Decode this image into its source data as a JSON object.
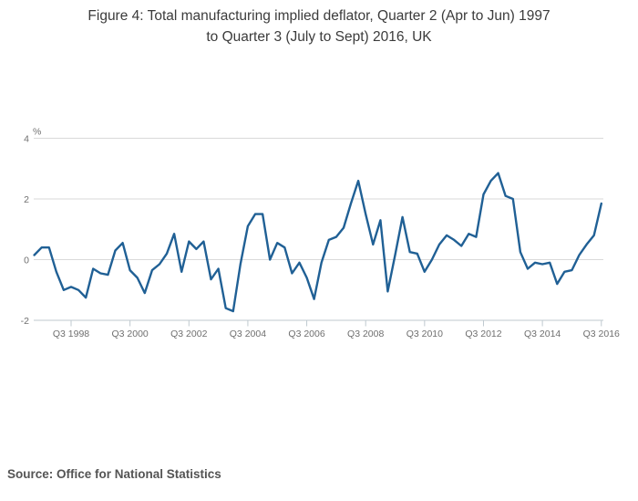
{
  "title": {
    "line1": "Figure 4: Total manufacturing implied deflator, Quarter 2 (Apr to Jun) 1997",
    "line2": "to Quarter 3 (July to Sept) 2016, UK"
  },
  "source": "Source: Office for National Statistics",
  "chart_data": {
    "type": "line",
    "title": "Figure 4: Total manufacturing implied deflator, Quarter 2 (Apr to Jun) 1997 to Quarter 3 (July to Sept) 2016, UK",
    "y_axis_label": "%",
    "x_start": "Q2 1997",
    "x_end": "Q3 2016",
    "frequency": "quarterly",
    "ylim": [
      -2,
      4
    ],
    "y_ticks": [
      4,
      2,
      0,
      -2
    ],
    "grid": "horizontal",
    "legend": "none",
    "line_color": "#206095",
    "x_tick_labels": [
      "Q3 1998",
      "Q3 2000",
      "Q3 2002",
      "Q3 2004",
      "Q3 2006",
      "Q3 2008",
      "Q3 2010",
      "Q3 2012",
      "Q3 2014",
      "Q3 2016"
    ],
    "x_categories_note": "78 quarterly points from Q2 1997 to Q3 2016; x tick labels fall on every 8th point starting at index 5",
    "values": [
      0.15,
      0.4,
      0.4,
      -0.4,
      -1.0,
      -0.9,
      -1.0,
      -1.25,
      -0.3,
      -0.45,
      -0.5,
      0.3,
      0.55,
      -0.35,
      -0.6,
      -1.1,
      -0.35,
      -0.15,
      0.2,
      0.85,
      -0.4,
      0.6,
      0.35,
      0.6,
      -0.65,
      -0.3,
      -1.6,
      -1.7,
      -0.15,
      1.1,
      1.5,
      1.5,
      0.0,
      0.55,
      0.4,
      -0.45,
      -0.1,
      -0.6,
      -1.3,
      -0.1,
      0.65,
      0.75,
      1.05,
      1.85,
      2.6,
      1.5,
      0.5,
      1.3,
      -1.05,
      0.15,
      1.4,
      0.25,
      0.2,
      -0.4,
      0.0,
      0.5,
      0.8,
      0.65,
      0.45,
      0.85,
      0.75,
      2.15,
      2.6,
      2.85,
      2.1,
      2.0,
      0.25,
      -0.3,
      -0.1,
      -0.15,
      -0.1,
      -0.8,
      -0.4,
      -0.35,
      0.15,
      0.5,
      0.8,
      1.85
    ]
  },
  "colors": {
    "line": "#206095",
    "gridline": "#d9d9d9",
    "axis": "#bfc9cf",
    "tick_label": "#6f6f6f",
    "title_text": "#3b3b3b",
    "source_text": "#545454",
    "background": "#ffffff"
  }
}
